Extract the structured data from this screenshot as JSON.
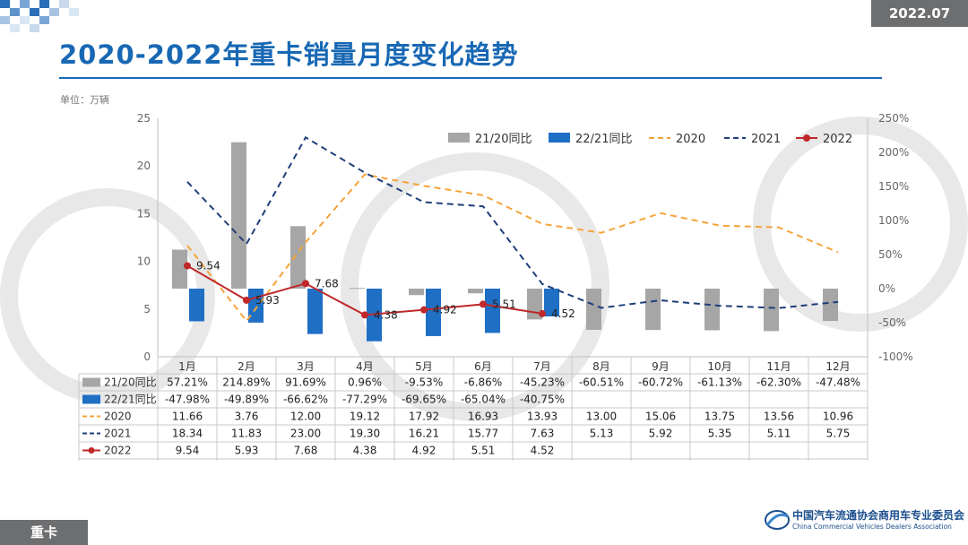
{
  "header": {
    "period": "2022.07",
    "title": "2020-2022年重卡销量月度变化趋势",
    "unit_label": "单位：万辆"
  },
  "footer": {
    "section_tab": "重卡",
    "org_name_cn": "中国汽车流通协会商用车专业委员会",
    "org_name_en": "China Commercial Vehicles Dealers Association"
  },
  "colors": {
    "title": "#1868b4",
    "bar_21_20": "#a6a6a6",
    "bar_22_21": "#1f6fc5",
    "line_2020": "#f5a43a",
    "line_2021": "#1f3f7a",
    "line_2022": "#c0282a"
  },
  "chart_data": {
    "type": "bar",
    "categories": [
      "1月",
      "2月",
      "3月",
      "4月",
      "5月",
      "6月",
      "7月",
      "8月",
      "9月",
      "10月",
      "11月",
      "12月"
    ],
    "y_left": {
      "ylim": [
        0,
        25
      ],
      "ticks": [
        "0",
        "5",
        "10",
        "15",
        "20",
        "25"
      ]
    },
    "y_right": {
      "ylim": [
        -100,
        250
      ],
      "ticks": [
        "-100%",
        "-50%",
        "0%",
        "50%",
        "100%",
        "150%",
        "200%",
        "250%"
      ]
    },
    "series": [
      {
        "name": "21/20同比",
        "kind": "bar",
        "axis": "right",
        "display": [
          "57.21%",
          "214.89%",
          "91.69%",
          "0.96%",
          "-9.53%",
          "-6.86%",
          "-45.23%",
          "-60.51%",
          "-60.72%",
          "-61.13%",
          "-62.30%",
          "-47.48%"
        ],
        "values": [
          57.21,
          214.89,
          91.69,
          0.96,
          -9.53,
          -6.86,
          -45.23,
          -60.51,
          -60.72,
          -61.13,
          -62.3,
          -47.48
        ]
      },
      {
        "name": "22/21同比",
        "kind": "bar",
        "axis": "right",
        "display": [
          "-47.98%",
          "-49.89%",
          "-66.62%",
          "-77.29%",
          "-69.65%",
          "-65.04%",
          "-40.75%",
          "",
          "",
          "",
          "",
          ""
        ],
        "values": [
          -47.98,
          -49.89,
          -66.62,
          -77.29,
          -69.65,
          -65.04,
          -40.75,
          null,
          null,
          null,
          null,
          null
        ]
      },
      {
        "name": "2020",
        "kind": "line",
        "style": "dashed",
        "axis": "left",
        "display": [
          "11.66",
          "3.76",
          "12.00",
          "19.12",
          "17.92",
          "16.93",
          "13.93",
          "13.00",
          "15.06",
          "13.75",
          "13.56",
          "10.96"
        ],
        "values": [
          11.66,
          3.76,
          12.0,
          19.12,
          17.92,
          16.93,
          13.93,
          13.0,
          15.06,
          13.75,
          13.56,
          10.96
        ]
      },
      {
        "name": "2021",
        "kind": "line",
        "style": "dashed",
        "axis": "left",
        "display": [
          "18.34",
          "11.83",
          "23.00",
          "19.30",
          "16.21",
          "15.77",
          "7.63",
          "5.13",
          "5.92",
          "5.35",
          "5.11",
          "5.75"
        ],
        "values": [
          18.34,
          11.83,
          23.0,
          19.3,
          16.21,
          15.77,
          7.63,
          5.13,
          5.92,
          5.35,
          5.11,
          5.75
        ]
      },
      {
        "name": "2022",
        "kind": "line",
        "style": "solid-marker",
        "axis": "left",
        "data_labels": true,
        "display": [
          "9.54",
          "5.93",
          "7.68",
          "4.38",
          "4.92",
          "5.51",
          "4.52",
          "",
          "",
          "",
          "",
          ""
        ],
        "values": [
          9.54,
          5.93,
          7.68,
          4.38,
          4.92,
          5.51,
          4.52,
          null,
          null,
          null,
          null,
          null
        ]
      }
    ],
    "legend_position": "top-right",
    "grid": false,
    "data_table": true
  }
}
